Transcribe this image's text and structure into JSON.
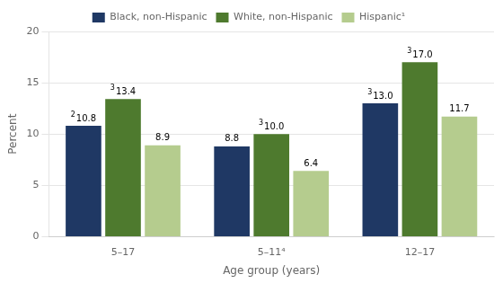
{
  "chart_data": {
    "type": "bar",
    "categories": [
      "5–17",
      "5–11⁴",
      "12–17"
    ],
    "series": [
      {
        "name": "Black, non-Hispanic",
        "color": "#1f3864",
        "values": [
          10.8,
          8.8,
          13.0
        ],
        "value_labels": [
          "10.8",
          "8.8",
          "13.0"
        ],
        "superscripts": [
          "2",
          null,
          "3"
        ]
      },
      {
        "name": "White, non-Hispanic",
        "color": "#4e7a2e",
        "values": [
          13.4,
          10.0,
          17.0
        ],
        "value_labels": [
          "13.4",
          "10.0",
          "17.0"
        ],
        "superscripts": [
          "3",
          "3",
          "3"
        ]
      },
      {
        "name": "Hispanic¹",
        "color": "#b5cc8e",
        "values": [
          8.9,
          6.4,
          11.7
        ],
        "value_labels": [
          "8.9",
          "6.4",
          "11.7"
        ],
        "superscripts": [
          null,
          null,
          null
        ]
      }
    ],
    "x_label": "Age group (years)",
    "y_label": "Percent",
    "ylim": [
      0,
      20
    ],
    "yticks": [
      0,
      5,
      10,
      15,
      20
    ],
    "grid": true,
    "legend": "top",
    "data_labels": true
  }
}
